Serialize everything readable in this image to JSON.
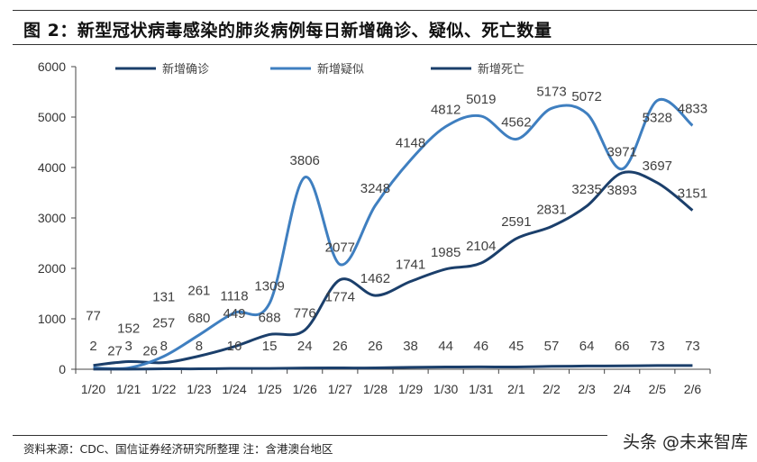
{
  "title": "图 2：新型冠状病毒感染的肺炎病例每日新增确诊、疑似、死亡数量",
  "source": "资料来源：CDC、国信证券经济研究所整理  注：含港澳台地区",
  "watermark": "头条 @未来智库",
  "chart_data": {
    "type": "line",
    "categories": [
      "1/20",
      "1/21",
      "1/22",
      "1/23",
      "1/24",
      "1/25",
      "1/26",
      "1/27",
      "1/28",
      "1/29",
      "1/30",
      "1/31",
      "2/1",
      "2/2",
      "2/3",
      "2/4",
      "2/5",
      "2/6"
    ],
    "ylim": [
      0,
      6000
    ],
    "yticks": [
      0,
      1000,
      2000,
      3000,
      4000,
      5000,
      6000
    ],
    "legend": "top",
    "grid": false,
    "series": [
      {
        "name": "新增确诊",
        "color": "#1b3f6b",
        "values": [
          77,
          152,
          131,
          261,
          449,
          688,
          776,
          1774,
          1462,
          1741,
          1985,
          2104,
          2591,
          2831,
          3235,
          3893,
          3697,
          3151
        ]
      },
      {
        "name": "新增疑似",
        "color": "#3f7fc0",
        "values": [
          27,
          26,
          257,
          680,
          1118,
          1309,
          3806,
          2077,
          3248,
          4148,
          4812,
          5019,
          4562,
          5173,
          5072,
          3971,
          5328,
          4833
        ]
      },
      {
        "name": "新增死亡",
        "color": "#1b3f6b",
        "values": [
          2,
          3,
          8,
          8,
          16,
          15,
          24,
          26,
          26,
          38,
          44,
          46,
          45,
          57,
          64,
          66,
          73,
          73
        ]
      }
    ]
  }
}
